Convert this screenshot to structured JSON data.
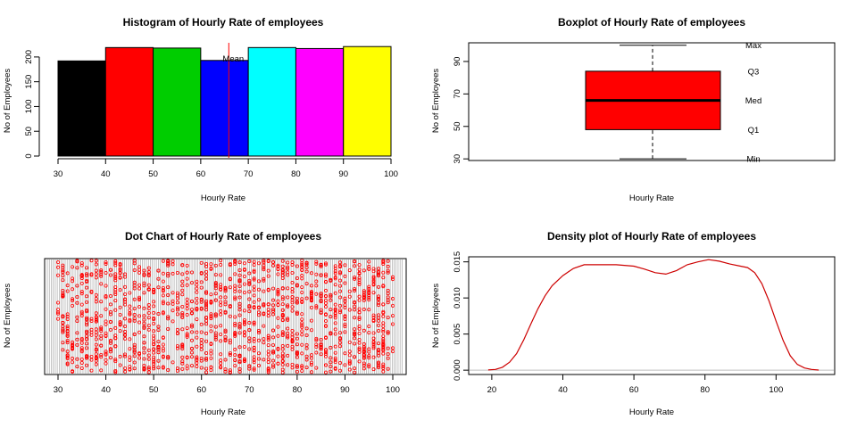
{
  "chart_data": [
    {
      "id": "hist",
      "type": "bar",
      "title": "Histogram of Hourly Rate of employees",
      "xlabel": "Hourly Rate",
      "ylabel": "No of Employees",
      "xlim": [
        30,
        100
      ],
      "ylim": [
        0,
        225
      ],
      "xticks": [
        30,
        40,
        50,
        60,
        70,
        80,
        90,
        100
      ],
      "yticks": [
        0,
        50,
        100,
        150,
        200
      ],
      "bins": [
        [
          30,
          40
        ],
        [
          40,
          50
        ],
        [
          50,
          60
        ],
        [
          60,
          70
        ],
        [
          70,
          80
        ],
        [
          80,
          90
        ],
        [
          90,
          100
        ]
      ],
      "values": [
        192,
        219,
        218,
        193,
        219,
        217,
        221
      ],
      "colors": [
        "#000000",
        "#ff0000",
        "#00cd00",
        "#0000ff",
        "#00ffff",
        "#ff00ff",
        "#ffff00"
      ],
      "mean_line": {
        "value": 65.9,
        "label": "Mean",
        "color": "#ff0000"
      }
    },
    {
      "id": "box",
      "type": "boxplot",
      "title": "Boxplot of Hourly Rate of employees",
      "xlabel": "Hourly Rate",
      "ylabel": "No of Employees",
      "ylim": [
        29,
        101.5
      ],
      "yticks": [
        30,
        50,
        70,
        90
      ],
      "stats": {
        "min": 30,
        "q1": 48,
        "median": 66,
        "q3": 84,
        "max": 100
      },
      "fill": "#ff0000",
      "annotations": [
        {
          "label": "Max",
          "value": 100
        },
        {
          "label": "Q3",
          "value": 84
        },
        {
          "label": "Med",
          "value": 66
        },
        {
          "label": "Q1",
          "value": 48
        },
        {
          "label": "Min",
          "value": 30
        }
      ]
    },
    {
      "id": "dot",
      "type": "scatter",
      "title": "Dot Chart of Hourly Rate of employees",
      "xlabel": "Hourly Rate",
      "ylabel": "No of Employees",
      "xlim": [
        27.2,
        102.8
      ],
      "xticks": [
        30,
        40,
        50,
        60,
        70,
        80,
        90,
        100
      ],
      "point_color": "#ff0000",
      "grid": true
    },
    {
      "id": "density",
      "type": "line",
      "title": "Density plot of Hourly Rate of employees",
      "xlabel": "Hourly Rate",
      "ylabel": "No of Employees",
      "xlim": [
        13.5,
        116.5
      ],
      "ylim": [
        -0.0006,
        0.0157
      ],
      "xticks": [
        20,
        40,
        60,
        80,
        100
      ],
      "yticks": [
        0,
        0.005,
        0.01,
        0.015
      ],
      "ytick_labels": [
        "0.000",
        "0.005",
        "0.010",
        "0.015"
      ],
      "color": "#cd0000",
      "x": [
        19,
        21,
        23,
        25,
        27,
        29,
        31,
        33,
        35,
        37,
        40,
        43,
        46,
        50,
        55,
        60,
        63,
        66,
        69,
        72,
        75,
        78,
        81,
        84,
        87,
        90,
        92,
        94,
        96,
        98,
        100,
        102,
        104,
        106,
        108,
        110,
        112
      ],
      "y": [
        3e-05,
        0.0001,
        0.0004,
        0.0011,
        0.0023,
        0.0042,
        0.0064,
        0.0085,
        0.0103,
        0.0117,
        0.0131,
        0.0141,
        0.0146,
        0.0146,
        0.0146,
        0.0144,
        0.014,
        0.0135,
        0.0133,
        0.0138,
        0.0146,
        0.015,
        0.0153,
        0.0151,
        0.0147,
        0.0144,
        0.0142,
        0.0135,
        0.012,
        0.0096,
        0.0068,
        0.0041,
        0.002,
        0.0008,
        0.0003,
        0.0001,
        2e-05
      ]
    }
  ]
}
